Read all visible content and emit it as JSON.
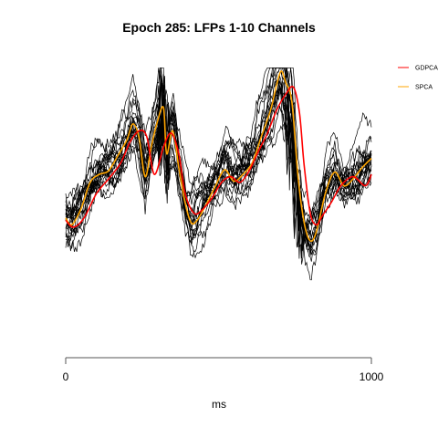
{
  "chart_data": {
    "type": "line",
    "title": "Epoch 285: LFPs 1-10 Channels",
    "xlabel": "ms",
    "ylabel": "",
    "xlim": [
      0,
      1000
    ],
    "x_ticks": [
      0,
      1000
    ],
    "ylim": [
      -1.4,
      1.1
    ],
    "grid": false,
    "legend_position": "top-right",
    "background_traces": {
      "count": 20,
      "color": "#000000"
    },
    "series": [
      {
        "name": "GDPCA",
        "color": "#ff0000",
        "x": [
          0,
          25,
          60,
          100,
          140,
          180,
          210,
          240,
          265,
          290,
          320,
          345,
          370,
          390,
          420,
          450,
          480,
          510,
          540,
          570,
          600,
          630,
          660,
          690,
          720,
          745,
          765,
          780,
          800,
          820,
          840,
          870,
          900,
          940,
          980,
          1000
        ],
        "values": [
          -0.28,
          -0.34,
          -0.26,
          -0.05,
          0.08,
          0.22,
          0.4,
          0.5,
          0.45,
          0.12,
          0.36,
          0.48,
          0.3,
          -0.04,
          -0.22,
          -0.18,
          -0.08,
          0.05,
          0.1,
          0.05,
          0.15,
          0.32,
          0.48,
          0.68,
          0.82,
          0.88,
          0.65,
          0.2,
          -0.22,
          -0.32,
          -0.24,
          -0.12,
          0.02,
          0.1,
          0.02,
          0.12
        ]
      },
      {
        "name": "SPCA",
        "color": "#ffa500",
        "x": [
          0,
          20,
          50,
          80,
          110,
          140,
          170,
          200,
          220,
          240,
          260,
          280,
          300,
          320,
          330,
          350,
          370,
          390,
          410,
          430,
          460,
          490,
          520,
          550,
          580,
          610,
          640,
          670,
          690,
          705,
          720,
          740,
          760,
          780,
          800,
          820,
          850,
          880,
          910,
          940,
          970,
          1000
        ],
        "values": [
          -0.26,
          -0.32,
          -0.18,
          0.05,
          0.12,
          0.15,
          0.28,
          0.42,
          0.56,
          0.44,
          0.1,
          0.36,
          0.58,
          0.7,
          0.3,
          0.5,
          0.18,
          -0.12,
          -0.3,
          -0.28,
          -0.14,
          0.02,
          0.16,
          0.06,
          0.12,
          0.22,
          0.45,
          0.68,
          0.9,
          1.02,
          0.92,
          0.75,
          0.1,
          -0.3,
          -0.46,
          -0.38,
          -0.04,
          0.14,
          0.02,
          0.08,
          0.18,
          0.26
        ]
      }
    ]
  }
}
